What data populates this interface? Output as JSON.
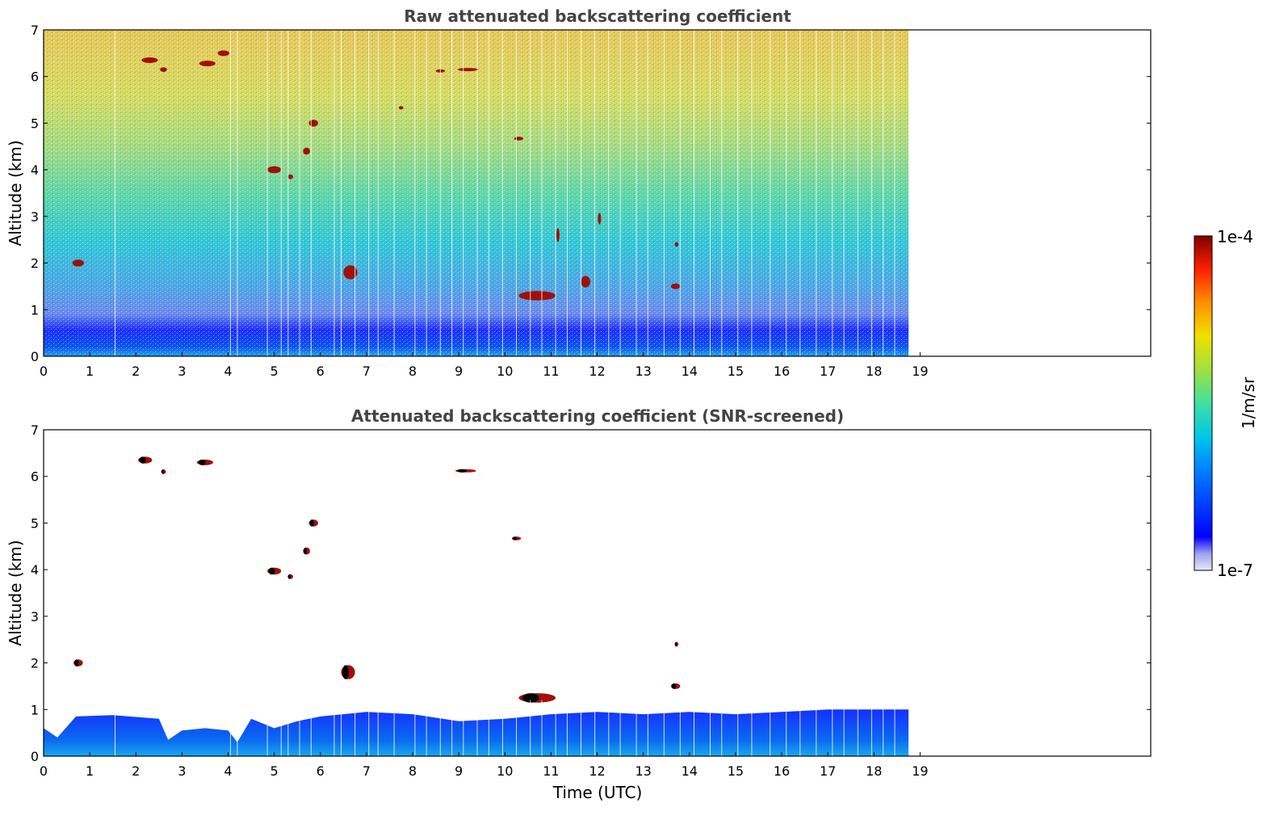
{
  "chart_data": [
    {
      "type": "heatmap",
      "title": "Raw attenuated backscattering coefficient",
      "xlabel": "",
      "ylabel": "Altitude (km)",
      "xlim": [
        0,
        24
      ],
      "ylim": [
        0,
        7
      ],
      "x_ticks": [
        0,
        1,
        2,
        3,
        4,
        5,
        6,
        7,
        8,
        9,
        10,
        11,
        12,
        13,
        14,
        15,
        16,
        17,
        18,
        19
      ],
      "y_ticks": [
        0,
        1,
        2,
        3,
        4,
        5,
        6,
        7
      ],
      "data_extent_hours": [
        0,
        18.75
      ],
      "colorscale": "jet, log10",
      "cloud_features": [
        {
          "t": 2.3,
          "z": 6.35,
          "w": 0.35,
          "h": 0.12
        },
        {
          "t": 2.6,
          "z": 6.15,
          "w": 0.15,
          "h": 0.1
        },
        {
          "t": 3.55,
          "z": 6.28,
          "w": 0.35,
          "h": 0.12
        },
        {
          "t": 3.9,
          "z": 6.5,
          "w": 0.25,
          "h": 0.12
        },
        {
          "t": 9.2,
          "z": 6.15,
          "w": 0.45,
          "h": 0.06
        },
        {
          "t": 8.6,
          "z": 6.12,
          "w": 0.2,
          "h": 0.04
        },
        {
          "t": 5.85,
          "z": 5.0,
          "w": 0.2,
          "h": 0.15
        },
        {
          "t": 5.7,
          "z": 4.4,
          "w": 0.15,
          "h": 0.15
        },
        {
          "t": 5.0,
          "z": 4.0,
          "w": 0.3,
          "h": 0.15
        },
        {
          "t": 5.35,
          "z": 3.85,
          "w": 0.12,
          "h": 0.1
        },
        {
          "t": 10.3,
          "z": 4.67,
          "w": 0.2,
          "h": 0.08
        },
        {
          "t": 7.75,
          "z": 5.33,
          "w": 0.1,
          "h": 0.04
        },
        {
          "t": 0.75,
          "z": 2.0,
          "w": 0.25,
          "h": 0.15
        },
        {
          "t": 6.65,
          "z": 1.8,
          "w": 0.3,
          "h": 0.3
        },
        {
          "t": 10.7,
          "z": 1.3,
          "w": 0.8,
          "h": 0.2
        },
        {
          "t": 11.75,
          "z": 1.6,
          "w": 0.2,
          "h": 0.25
        },
        {
          "t": 13.7,
          "z": 1.5,
          "w": 0.2,
          "h": 0.12
        },
        {
          "t": 13.72,
          "z": 2.4,
          "w": 0.08,
          "h": 0.1
        },
        {
          "t": 12.05,
          "z": 2.95,
          "w": 0.05,
          "h": 0.25
        },
        {
          "t": 11.15,
          "z": 2.6,
          "w": 0.05,
          "h": 0.3
        }
      ]
    },
    {
      "type": "heatmap",
      "title": "Attenuated backscattering coefficient (SNR-screened)",
      "xlabel": "Time (UTC)",
      "ylabel": "Altitude (km)",
      "xlim": [
        0,
        24
      ],
      "ylim": [
        0,
        7
      ],
      "x_ticks": [
        0,
        1,
        2,
        3,
        4,
        5,
        6,
        7,
        8,
        9,
        10,
        11,
        12,
        13,
        14,
        15,
        16,
        17,
        18,
        19
      ],
      "y_ticks": [
        0,
        1,
        2,
        3,
        4,
        5,
        6,
        7
      ],
      "data_extent_hours": [
        0,
        18.75
      ],
      "boundary_layer_top_km": [
        [
          0,
          0.6
        ],
        [
          0.3,
          0.4
        ],
        [
          0.7,
          0.85
        ],
        [
          1.5,
          0.88
        ],
        [
          2.5,
          0.8
        ],
        [
          2.7,
          0.35
        ],
        [
          3.0,
          0.55
        ],
        [
          3.5,
          0.6
        ],
        [
          4.0,
          0.55
        ],
        [
          4.2,
          0.3
        ],
        [
          4.5,
          0.8
        ],
        [
          5.0,
          0.6
        ],
        [
          5.5,
          0.75
        ],
        [
          6.0,
          0.85
        ],
        [
          7.0,
          0.95
        ],
        [
          8.0,
          0.9
        ],
        [
          9.0,
          0.75
        ],
        [
          10.0,
          0.8
        ],
        [
          11.0,
          0.9
        ],
        [
          12.0,
          0.95
        ],
        [
          13.0,
          0.9
        ],
        [
          14.0,
          0.95
        ],
        [
          15.0,
          0.9
        ],
        [
          16.0,
          0.95
        ],
        [
          17.0,
          1.0
        ],
        [
          18.0,
          1.0
        ],
        [
          18.75,
          1.0
        ]
      ],
      "cloud_features": [
        {
          "t": 2.2,
          "z": 6.35,
          "w": 0.3,
          "h": 0.15
        },
        {
          "t": 2.6,
          "z": 6.1,
          "w": 0.1,
          "h": 0.1
        },
        {
          "t": 3.5,
          "z": 6.3,
          "w": 0.35,
          "h": 0.12
        },
        {
          "t": 9.15,
          "z": 6.12,
          "w": 0.45,
          "h": 0.06
        },
        {
          "t": 5.85,
          "z": 5.0,
          "w": 0.2,
          "h": 0.15
        },
        {
          "t": 5.7,
          "z": 4.4,
          "w": 0.15,
          "h": 0.15
        },
        {
          "t": 5.0,
          "z": 3.97,
          "w": 0.3,
          "h": 0.15
        },
        {
          "t": 5.35,
          "z": 3.85,
          "w": 0.12,
          "h": 0.1
        },
        {
          "t": 10.25,
          "z": 4.67,
          "w": 0.2,
          "h": 0.08
        },
        {
          "t": 0.75,
          "z": 2.0,
          "w": 0.2,
          "h": 0.15
        },
        {
          "t": 6.6,
          "z": 1.8,
          "w": 0.3,
          "h": 0.3
        },
        {
          "t": 10.7,
          "z": 1.25,
          "w": 0.8,
          "h": 0.2
        },
        {
          "t": 13.7,
          "z": 1.5,
          "w": 0.2,
          "h": 0.12
        },
        {
          "t": 13.72,
          "z": 2.4,
          "w": 0.08,
          "h": 0.1
        }
      ]
    }
  ],
  "colorbar": {
    "max_label": "1e-4",
    "min_label": "1e-7",
    "unit_label": "1/m/sr"
  }
}
